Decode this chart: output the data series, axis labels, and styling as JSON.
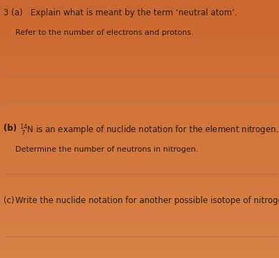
{
  "bg_color": "#c96830",
  "line_color": "#b07050",
  "text_color": "#2a1a0a",
  "title_text": "3 (a)   Explain what is meant by the term ‘neutral atom’.",
  "sub_text_a": "Refer to the number of electrons and protons.",
  "part_b_label": "(b)",
  "part_b_sub": "Determine the number of neutrons in nitrogen.",
  "part_c_label": "(c)",
  "part_c_text": "Write the nuclide notation for another possible isotope of nitrogen.",
  "font_size_main": 8.5,
  "font_size_sub": 8.0
}
